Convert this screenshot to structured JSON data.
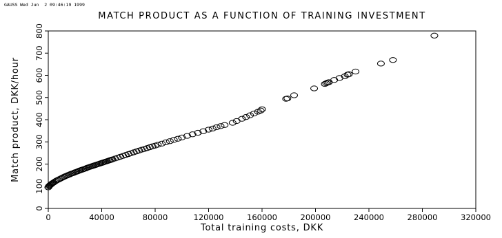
{
  "header": {
    "program": "GAUSS",
    "timestamp": "Wed Jun  2 09:46:19 1999"
  },
  "chart_data": {
    "type": "scatter",
    "title": "MATCH PRODUCT AS A FUNCTION OF TRAINING INVESTMENT",
    "xlabel": "Total training costs, DKK",
    "ylabel": "Match product, DKK/hour",
    "xlim": [
      0,
      320000
    ],
    "ylim": [
      0,
      800
    ],
    "x_ticks": [
      0,
      40000,
      80000,
      120000,
      160000,
      200000,
      240000,
      280000,
      320000
    ],
    "y_ticks": [
      0,
      100,
      200,
      300,
      400,
      500,
      600,
      700,
      800
    ],
    "grid": false,
    "legend": "none",
    "marker": "open-circle",
    "series": [
      {
        "points": [
          [
            0,
            95
          ],
          [
            500,
            100
          ],
          [
            1000,
            103
          ],
          [
            1500,
            106
          ],
          [
            2000,
            108
          ],
          [
            2500,
            111
          ],
          [
            3000,
            113
          ],
          [
            3500,
            115
          ],
          [
            4000,
            117
          ],
          [
            5000,
            121
          ],
          [
            6000,
            125
          ],
          [
            7000,
            128
          ],
          [
            8000,
            131
          ],
          [
            9000,
            134
          ],
          [
            10000,
            137
          ],
          [
            11000,
            140
          ],
          [
            12000,
            143
          ],
          [
            13000,
            146
          ],
          [
            14000,
            148
          ],
          [
            15000,
            151
          ],
          [
            16000,
            153
          ],
          [
            17000,
            156
          ],
          [
            18000,
            158
          ],
          [
            19000,
            160
          ],
          [
            20000,
            163
          ],
          [
            21000,
            165
          ],
          [
            22000,
            167
          ],
          [
            23000,
            170
          ],
          [
            24000,
            172
          ],
          [
            25000,
            174
          ],
          [
            26000,
            176
          ],
          [
            27000,
            178
          ],
          [
            28000,
            180
          ],
          [
            29000,
            183
          ],
          [
            30000,
            185
          ],
          [
            31000,
            187
          ],
          [
            32000,
            189
          ],
          [
            33000,
            191
          ],
          [
            34000,
            193
          ],
          [
            35000,
            195
          ],
          [
            36000,
            197
          ],
          [
            37000,
            199
          ],
          [
            38000,
            201
          ],
          [
            39000,
            203
          ],
          [
            40000,
            205
          ],
          [
            41000,
            207
          ],
          [
            42000,
            209
          ],
          [
            43000,
            211
          ],
          [
            44000,
            213
          ],
          [
            45000,
            215
          ],
          [
            46000,
            217
          ],
          [
            47000,
            219
          ],
          [
            48000,
            221
          ],
          [
            50000,
            225
          ],
          [
            52000,
            229
          ],
          [
            54000,
            233
          ],
          [
            56000,
            237
          ],
          [
            58000,
            241
          ],
          [
            60000,
            245
          ],
          [
            62000,
            249
          ],
          [
            64000,
            253
          ],
          [
            66000,
            257
          ],
          [
            68000,
            261
          ],
          [
            70000,
            265
          ],
          [
            72000,
            268
          ],
          [
            74000,
            272
          ],
          [
            76000,
            276
          ],
          [
            78000,
            280
          ],
          [
            80000,
            283
          ],
          [
            82000,
            287
          ],
          [
            85000,
            292
          ],
          [
            88000,
            298
          ],
          [
            91000,
            303
          ],
          [
            94000,
            309
          ],
          [
            97000,
            314
          ],
          [
            100000,
            320
          ],
          [
            104000,
            327
          ],
          [
            108000,
            334
          ],
          [
            112000,
            341
          ],
          [
            116000,
            348
          ],
          [
            120000,
            355
          ],
          [
            123000,
            360
          ],
          [
            126000,
            366
          ],
          [
            129000,
            371
          ],
          [
            132000,
            376
          ],
          [
            138000,
            386
          ],
          [
            141000,
            394
          ],
          [
            145000,
            404
          ],
          [
            148000,
            412
          ],
          [
            151000,
            420
          ],
          [
            154000,
            428
          ],
          [
            157000,
            436
          ],
          [
            159000,
            441
          ],
          [
            160000,
            447
          ],
          [
            178000,
            494
          ],
          [
            179000,
            496
          ],
          [
            184000,
            510
          ],
          [
            199000,
            541
          ],
          [
            207000,
            561
          ],
          [
            208000,
            564
          ],
          [
            209000,
            567
          ],
          [
            210000,
            569
          ],
          [
            214000,
            579
          ],
          [
            218000,
            588
          ],
          [
            222000,
            596
          ],
          [
            224000,
            603
          ],
          [
            225000,
            605
          ],
          [
            230000,
            617
          ],
          [
            249000,
            653
          ],
          [
            258000,
            669
          ],
          [
            289000,
            779
          ]
        ]
      }
    ]
  }
}
